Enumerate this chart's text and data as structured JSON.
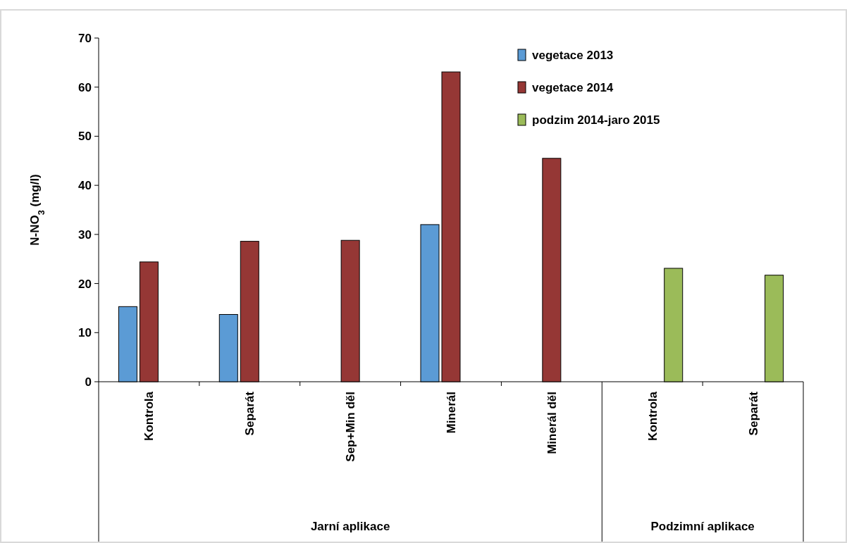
{
  "chart_data": {
    "type": "bar",
    "ylabel": "N-NO$_{3}$ (mg/l)",
    "categories": [
      "Kontrola",
      "Separát",
      "Sep+Min děl",
      "Minerál",
      "Minerál děl",
      "Kontrola",
      "Separát"
    ],
    "series": [
      {
        "name": "vegetace 2013",
        "color": "#5b9bd5",
        "values": [
          15.3,
          13.7,
          null,
          32.0,
          null,
          null,
          null
        ]
      },
      {
        "name": "vegetace 2014",
        "color": "#953735",
        "values": [
          24.4,
          28.6,
          28.8,
          63.1,
          45.5,
          null,
          null
        ]
      },
      {
        "name": "podzim 2014-jaro 2015",
        "color": "#9bbb59",
        "values": [
          null,
          null,
          null,
          null,
          null,
          23.1,
          21.7
        ]
      }
    ],
    "ylim": [
      0,
      70
    ],
    "yticks": [
      0,
      10,
      20,
      30,
      40,
      50,
      60,
      70
    ],
    "legend": "top right",
    "annotations": [
      "Jarní aplikace",
      "Podzimní aplikace"
    ]
  }
}
